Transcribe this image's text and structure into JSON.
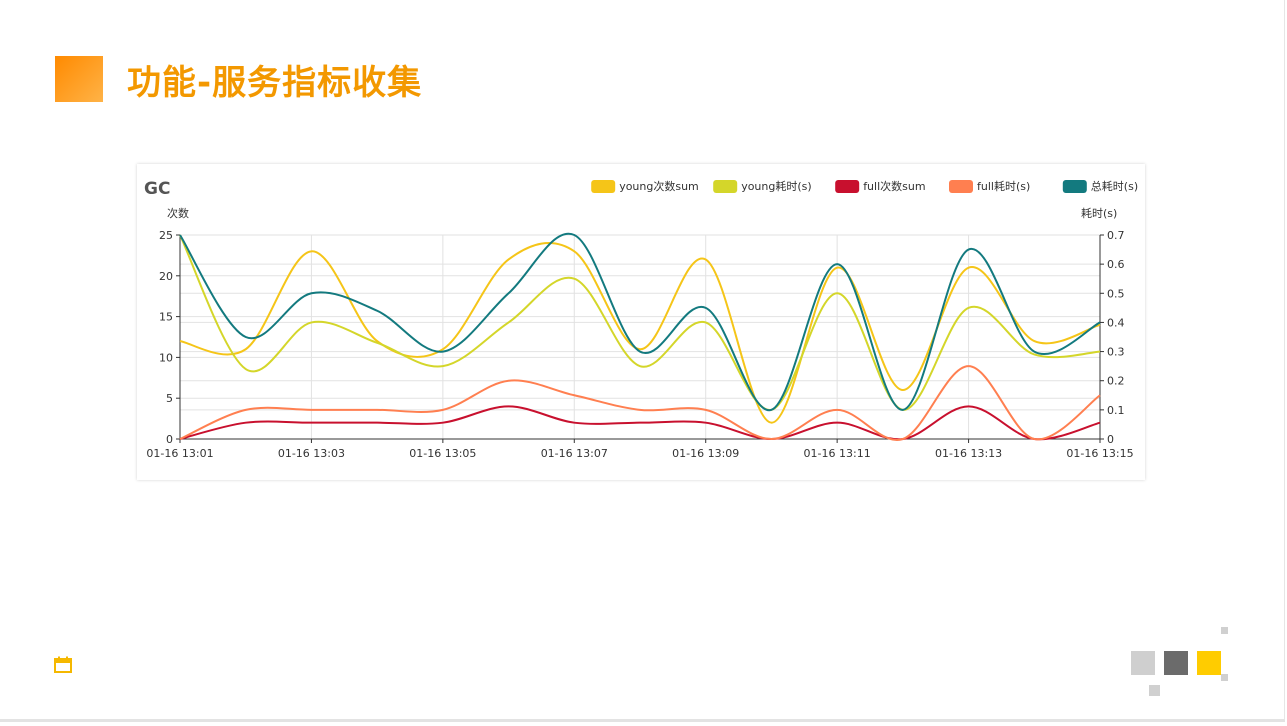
{
  "slide": {
    "title": "功能-服务指标收集"
  },
  "colors": {
    "title": "#f39800",
    "accent_square": "#ff9900",
    "deco_gray_light": "#cfcfcf",
    "deco_gray_dark": "#6b6b6b",
    "deco_yellow": "#ffcc00"
  },
  "icons": {
    "footer": "calendar-icon"
  },
  "chart_data": {
    "type": "line",
    "title": "GC",
    "ylabel_left": "次数",
    "ylabel_right": "耗时(s)",
    "legend_position": "top-right",
    "grid": true,
    "x_tick_labels": [
      "01-16 13:01",
      "01-16 13:03",
      "01-16 13:05",
      "01-16 13:07",
      "01-16 13:09",
      "01-16 13:11",
      "01-16 13:13",
      "01-16 13:15"
    ],
    "y_left": {
      "min": 0,
      "max": 25,
      "ticks": [
        "0",
        "5",
        "10",
        "15",
        "20",
        "25"
      ]
    },
    "y_right": {
      "min": 0,
      "max": 0.7,
      "ticks": [
        "0",
        "0.1",
        "0.2",
        "0.3",
        "0.4",
        "0.5",
        "0.6",
        "0.7"
      ]
    },
    "categories": [
      "13:01",
      "13:02",
      "13:03",
      "13:04",
      "13:05",
      "13:06",
      "13:07",
      "13:08",
      "13:09",
      "13:10",
      "13:11",
      "13:12",
      "13:13",
      "13:14",
      "13:15"
    ],
    "series": [
      {
        "name": "young次数sum",
        "axis": "left",
        "color": "#f5c518",
        "values": [
          12,
          11,
          23,
          12,
          11,
          22,
          23,
          11,
          22,
          2,
          21,
          6,
          21,
          12,
          14
        ]
      },
      {
        "name": "young耗时(s)",
        "axis": "right",
        "color": "#d4d62a",
        "values": [
          0.7,
          0.24,
          0.4,
          0.33,
          0.25,
          0.4,
          0.55,
          0.25,
          0.4,
          0.1,
          0.5,
          0.1,
          0.45,
          0.29,
          0.3
        ]
      },
      {
        "name": "full次数sum",
        "axis": "left",
        "color": "#c8102e",
        "values": [
          0,
          2,
          2,
          2,
          2,
          4,
          2,
          2,
          2,
          0,
          2,
          0,
          4,
          0,
          2
        ]
      },
      {
        "name": "full耗时(s)",
        "axis": "right",
        "color": "#ff7f50",
        "values": [
          0,
          0.1,
          0.1,
          0.1,
          0.1,
          0.2,
          0.15,
          0.1,
          0.1,
          0,
          0.1,
          0,
          0.25,
          0,
          0.15
        ]
      },
      {
        "name": "总耗时(s)",
        "axis": "right",
        "color": "#137a7f",
        "values": [
          0.7,
          0.35,
          0.5,
          0.44,
          0.3,
          0.5,
          0.7,
          0.3,
          0.45,
          0.1,
          0.6,
          0.1,
          0.65,
          0.3,
          0.4
        ]
      }
    ]
  }
}
